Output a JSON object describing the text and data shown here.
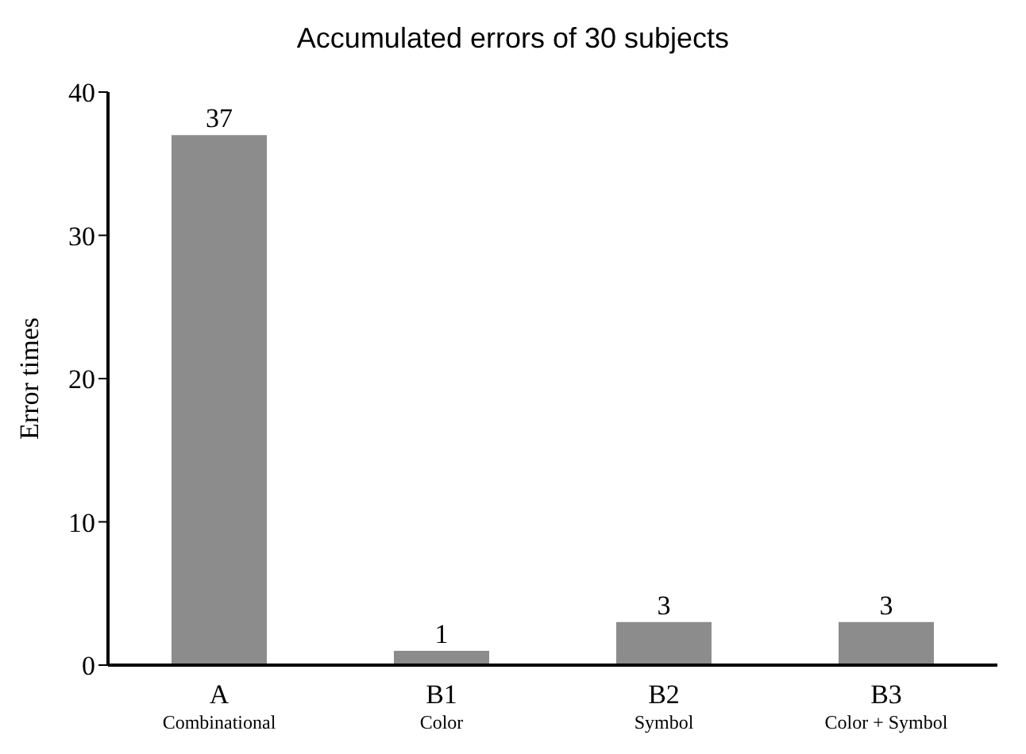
{
  "chart_data": {
    "type": "bar",
    "title": "Accumulated errors of 30 subjects",
    "ylabel": "Error times",
    "categories": [
      "A\nCombinational",
      "B1\nColor",
      "B2\nSymbol",
      "B3\nColor + Symbol"
    ],
    "values": [
      37,
      1,
      3,
      3
    ],
    "color": "#8c8c8c",
    "data_labels": true,
    "ylim": [
      0,
      40
    ],
    "yticks": [
      0,
      10,
      20,
      30,
      40
    ],
    "grid": false,
    "legend": false
  }
}
